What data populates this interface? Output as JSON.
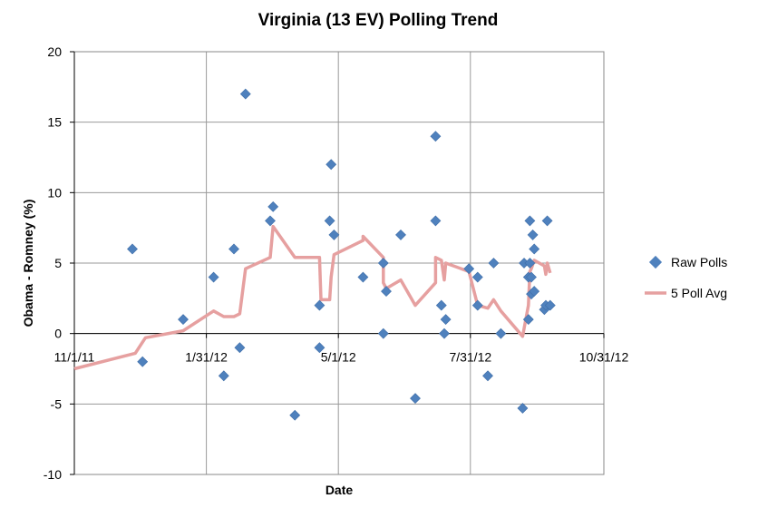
{
  "chart_data": {
    "type": "scatter",
    "title": "Virginia (13 EV) Polling Trend",
    "xlabel": "Date",
    "ylabel": "Obama - Romney (%)",
    "xlim": [
      "2011-11-01",
      "2012-10-31"
    ],
    "ylim": [
      -10,
      20
    ],
    "x_ticks": [
      "11/1/11",
      "1/31/12",
      "5/1/12",
      "7/31/12",
      "10/31/12"
    ],
    "x_tick_dates": [
      "2011-11-01",
      "2012-01-31",
      "2012-05-01",
      "2012-07-31",
      "2012-10-31"
    ],
    "y_ticks": [
      -10,
      -5,
      0,
      5,
      10,
      15,
      20
    ],
    "grid": true,
    "legend_position": "right",
    "colors": {
      "raw_polls": "#4f81bd",
      "poll_avg": "#e6a0a0"
    },
    "series": [
      {
        "name": "Raw Polls",
        "kind": "scatter",
        "points": [
          {
            "x": "2011-12-11",
            "y": 6
          },
          {
            "x": "2011-12-18",
            "y": -2
          },
          {
            "x": "2012-01-15",
            "y": 1
          },
          {
            "x": "2012-02-05",
            "y": 4
          },
          {
            "x": "2012-02-12",
            "y": -3
          },
          {
            "x": "2012-02-19",
            "y": 6
          },
          {
            "x": "2012-02-23",
            "y": -1
          },
          {
            "x": "2012-02-27",
            "y": 17
          },
          {
            "x": "2012-03-15",
            "y": 8
          },
          {
            "x": "2012-03-17",
            "y": 9
          },
          {
            "x": "2012-04-01",
            "y": -5.8
          },
          {
            "x": "2012-04-18",
            "y": 2
          },
          {
            "x": "2012-04-18",
            "y": -1
          },
          {
            "x": "2012-04-25",
            "y": 8
          },
          {
            "x": "2012-04-26",
            "y": 12
          },
          {
            "x": "2012-04-28",
            "y": 7
          },
          {
            "x": "2012-05-18",
            "y": 4
          },
          {
            "x": "2012-06-01",
            "y": 5
          },
          {
            "x": "2012-06-01",
            "y": 0
          },
          {
            "x": "2012-06-03",
            "y": 3
          },
          {
            "x": "2012-06-13",
            "y": 7
          },
          {
            "x": "2012-06-23",
            "y": -4.6
          },
          {
            "x": "2012-07-07",
            "y": 14
          },
          {
            "x": "2012-07-07",
            "y": 8
          },
          {
            "x": "2012-07-11",
            "y": 2
          },
          {
            "x": "2012-07-13",
            "y": 0
          },
          {
            "x": "2012-07-14",
            "y": 1
          },
          {
            "x": "2012-07-30",
            "y": 4.6
          },
          {
            "x": "2012-08-05",
            "y": 2
          },
          {
            "x": "2012-08-05",
            "y": 4
          },
          {
            "x": "2012-08-12",
            "y": -3
          },
          {
            "x": "2012-08-16",
            "y": 5
          },
          {
            "x": "2012-08-21",
            "y": 0
          },
          {
            "x": "2012-09-05",
            "y": -5.3
          },
          {
            "x": "2012-09-06",
            "y": 5
          },
          {
            "x": "2012-09-09",
            "y": 4
          },
          {
            "x": "2012-09-09",
            "y": 1
          },
          {
            "x": "2012-09-10",
            "y": 8
          },
          {
            "x": "2012-09-10",
            "y": 5
          },
          {
            "x": "2012-09-11",
            "y": 4
          },
          {
            "x": "2012-09-11",
            "y": 2.8
          },
          {
            "x": "2012-09-12",
            "y": 7
          },
          {
            "x": "2012-09-13",
            "y": 6
          },
          {
            "x": "2012-09-13",
            "y": 3
          },
          {
            "x": "2012-09-20",
            "y": 1.7
          },
          {
            "x": "2012-09-21",
            "y": 2
          },
          {
            "x": "2012-09-22",
            "y": 8
          },
          {
            "x": "2012-09-24",
            "y": 2
          }
        ]
      },
      {
        "name": "5 Poll Avg",
        "kind": "line",
        "points": [
          {
            "x": "2011-11-01",
            "y": -2.5
          },
          {
            "x": "2011-12-13",
            "y": -1.4
          },
          {
            "x": "2011-12-20",
            "y": -0.3
          },
          {
            "x": "2012-01-15",
            "y": 0.2
          },
          {
            "x": "2012-02-05",
            "y": 1.6
          },
          {
            "x": "2012-02-12",
            "y": 1.2
          },
          {
            "x": "2012-02-19",
            "y": 1.2
          },
          {
            "x": "2012-02-23",
            "y": 1.4
          },
          {
            "x": "2012-02-27",
            "y": 4.6
          },
          {
            "x": "2012-03-15",
            "y": 5.4
          },
          {
            "x": "2012-03-17",
            "y": 7.6
          },
          {
            "x": "2012-04-01",
            "y": 5.4
          },
          {
            "x": "2012-04-18",
            "y": 5.4
          },
          {
            "x": "2012-04-19",
            "y": 2.4
          },
          {
            "x": "2012-04-25",
            "y": 2.4
          },
          {
            "x": "2012-04-26",
            "y": 4.0
          },
          {
            "x": "2012-04-28",
            "y": 5.6
          },
          {
            "x": "2012-05-18",
            "y": 6.6
          },
          {
            "x": "2012-05-18",
            "y": 6.9
          },
          {
            "x": "2012-06-01",
            "y": 5.4
          },
          {
            "x": "2012-06-01",
            "y": 3.6
          },
          {
            "x": "2012-06-03",
            "y": 3.2
          },
          {
            "x": "2012-06-13",
            "y": 3.8
          },
          {
            "x": "2012-06-23",
            "y": 2.0
          },
          {
            "x": "2012-07-07",
            "y": 3.6
          },
          {
            "x": "2012-07-07",
            "y": 5.4
          },
          {
            "x": "2012-07-11",
            "y": 5.2
          },
          {
            "x": "2012-07-13",
            "y": 3.8
          },
          {
            "x": "2012-07-14",
            "y": 5.0
          },
          {
            "x": "2012-07-30",
            "y": 4.4
          },
          {
            "x": "2012-08-05",
            "y": 2.0
          },
          {
            "x": "2012-08-12",
            "y": 1.8
          },
          {
            "x": "2012-08-16",
            "y": 2.4
          },
          {
            "x": "2012-08-21",
            "y": 1.6
          },
          {
            "x": "2012-09-05",
            "y": -0.2
          },
          {
            "x": "2012-09-09",
            "y": 2.0
          },
          {
            "x": "2012-09-10",
            "y": 4.4
          },
          {
            "x": "2012-09-11",
            "y": 4.6
          },
          {
            "x": "2012-09-13",
            "y": 5.2
          },
          {
            "x": "2012-09-20",
            "y": 4.8
          },
          {
            "x": "2012-09-21",
            "y": 4.2
          },
          {
            "x": "2012-09-22",
            "y": 5.0
          },
          {
            "x": "2012-09-24",
            "y": 4.3
          }
        ]
      }
    ]
  }
}
